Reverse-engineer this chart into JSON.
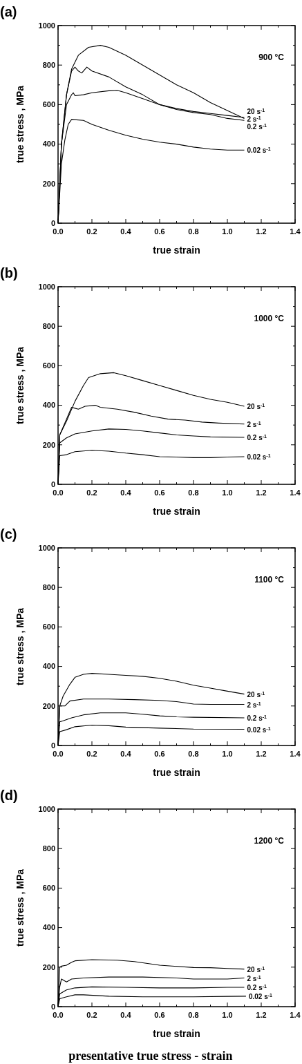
{
  "chart_data": [
    {
      "type": "line",
      "title": "(a)",
      "xlabel": "true strain",
      "ylabel": "true stress , MPa",
      "annotations": [
        "900 °C"
      ],
      "xlim": [
        0,
        1.4
      ],
      "ylim": [
        0,
        1000
      ],
      "xticks": [
        {
          "value": 0,
          "label": "0.0"
        },
        {
          "value": 0.1,
          "label": null
        },
        0.2,
        {
          "value": 0.3,
          "label": null
        },
        0.4,
        {
          "value": 0.5,
          "label": null
        },
        0.6,
        {
          "value": 0.7,
          "label": null
        },
        0.8,
        {
          "value": 0.9,
          "label": null
        },
        {
          "value": 1,
          "label": "1.0"
        },
        {
          "value": 1.1,
          "label": null
        },
        1.2,
        {
          "value": 1.3,
          "label": null
        },
        1.4
      ],
      "yticks": [
        0,
        {
          "value": 100,
          "label": null
        },
        200,
        {
          "value": 300,
          "label": null
        },
        400,
        {
          "value": 500,
          "label": null
        },
        600,
        {
          "value": 700,
          "label": null
        },
        800,
        {
          "value": 900,
          "label": null
        },
        1000
      ],
      "marker": "none",
      "line_style": "solid",
      "series": [
        {
          "name": "20 s$^{-1}$",
          "color": "#000000",
          "x": [
            0,
            0.02,
            0.05,
            0.08,
            0.12,
            0.18,
            0.25,
            0.3,
            0.4,
            0.5,
            0.6,
            0.7,
            0.8,
            0.9,
            1.0,
            1.1
          ],
          "values": [
            0,
            400,
            650,
            780,
            850,
            890,
            900,
            890,
            850,
            800,
            750,
            700,
            660,
            610,
            570,
            530
          ]
        },
        {
          "name": "2 s$^{-1}$",
          "color": "#000000",
          "x": [
            0,
            0.02,
            0.05,
            0.08,
            0.1,
            0.12,
            0.14,
            0.17,
            0.2,
            0.3,
            0.4,
            0.5,
            0.6,
            0.7,
            0.8,
            0.9,
            1.0,
            1.1
          ],
          "values": [
            0,
            400,
            650,
            770,
            790,
            770,
            760,
            790,
            770,
            740,
            690,
            650,
            600,
            580,
            565,
            555,
            545,
            535
          ]
        },
        {
          "name": "0.2 s$^{-1}$",
          "color": "#000000",
          "x": [
            0,
            0.02,
            0.05,
            0.08,
            0.09,
            0.1,
            0.15,
            0.2,
            0.3,
            0.35,
            0.4,
            0.5,
            0.6,
            0.7,
            0.8,
            0.9,
            1.0,
            1.1
          ],
          "values": [
            0,
            400,
            600,
            650,
            660,
            645,
            650,
            660,
            670,
            672,
            660,
            630,
            600,
            575,
            560,
            550,
            530,
            520
          ]
        },
        {
          "name": "0.02 s$^{-1}$",
          "color": "#000000",
          "x": [
            0,
            0.02,
            0.04,
            0.06,
            0.08,
            0.15,
            0.2,
            0.3,
            0.4,
            0.5,
            0.6,
            0.7,
            0.8,
            0.9,
            1.0,
            1.1
          ],
          "values": [
            0,
            300,
            420,
            500,
            525,
            520,
            500,
            470,
            445,
            425,
            410,
            400,
            385,
            375,
            370,
            370
          ]
        }
      ]
    },
    {
      "type": "line",
      "title": "(b)",
      "xlabel": "true strain",
      "ylabel": "true stress , MPa",
      "annotations": [
        "1000 °C"
      ],
      "xlim": [
        0,
        1.4
      ],
      "ylim": [
        0,
        1000
      ],
      "xticks": [
        {
          "value": 0,
          "label": "0.0"
        },
        {
          "value": 0.1,
          "label": null
        },
        0.2,
        {
          "value": 0.3,
          "label": null
        },
        0.4,
        {
          "value": 0.5,
          "label": null
        },
        0.6,
        {
          "value": 0.7,
          "label": null
        },
        0.8,
        {
          "value": 0.9,
          "label": null
        },
        {
          "value": 1,
          "label": "1.0"
        },
        {
          "value": 1.1,
          "label": null
        },
        1.2,
        {
          "value": 1.3,
          "label": null
        },
        1.4
      ],
      "yticks": [
        0,
        {
          "value": 100,
          "label": null
        },
        200,
        {
          "value": 300,
          "label": null
        },
        400,
        {
          "value": 500,
          "label": null
        },
        600,
        {
          "value": 700,
          "label": null
        },
        800,
        {
          "value": 900,
          "label": null
        },
        1000
      ],
      "marker": "none",
      "line_style": "solid",
      "series": [
        {
          "name": "20 s$^{-1}$",
          "color": "#000000",
          "x": [
            0,
            0.01,
            0.05,
            0.1,
            0.15,
            0.18,
            0.25,
            0.33,
            0.4,
            0.5,
            0.6,
            0.7,
            0.8,
            0.9,
            1.0,
            1.1
          ],
          "values": [
            0,
            250,
            320,
            420,
            500,
            540,
            560,
            565,
            550,
            525,
            500,
            475,
            450,
            430,
            415,
            395
          ]
        },
        {
          "name": "2 s$^{-1}$",
          "color": "#000000",
          "x": [
            0,
            0.01,
            0.05,
            0.08,
            0.1,
            0.12,
            0.16,
            0.22,
            0.25,
            0.35,
            0.45,
            0.55,
            0.65,
            0.75,
            0.85,
            0.95,
            1.1
          ],
          "values": [
            0,
            250,
            330,
            390,
            385,
            380,
            395,
            400,
            390,
            380,
            365,
            345,
            330,
            325,
            315,
            310,
            305
          ]
        },
        {
          "name": "0.2 s$^{-1}$",
          "color": "#000000",
          "x": [
            0,
            0.01,
            0.05,
            0.1,
            0.2,
            0.3,
            0.4,
            0.5,
            0.6,
            0.7,
            0.8,
            0.9,
            1.1
          ],
          "values": [
            0,
            210,
            235,
            255,
            270,
            280,
            278,
            270,
            260,
            250,
            245,
            240,
            238
          ]
        },
        {
          "name": "0.02 s$^{-1}$",
          "color": "#000000",
          "x": [
            0,
            0.01,
            0.05,
            0.1,
            0.2,
            0.3,
            0.4,
            0.5,
            0.6,
            0.7,
            0.8,
            0.9,
            1.0,
            1.1
          ],
          "values": [
            0,
            145,
            150,
            165,
            172,
            168,
            158,
            150,
            140,
            138,
            135,
            135,
            138,
            140
          ]
        }
      ]
    },
    {
      "type": "line",
      "title": "(c)",
      "xlabel": "true strain",
      "ylabel": "true stress , MPa",
      "annotations": [
        "1100 °C"
      ],
      "xlim": [
        0,
        1.4
      ],
      "ylim": [
        0,
        1000
      ],
      "xticks": [
        {
          "value": 0,
          "label": "0.0"
        },
        {
          "value": 0.1,
          "label": null
        },
        0.2,
        {
          "value": 0.3,
          "label": null
        },
        0.4,
        {
          "value": 0.5,
          "label": null
        },
        0.6,
        {
          "value": 0.7,
          "label": null
        },
        0.8,
        {
          "value": 0.9,
          "label": null
        },
        {
          "value": 1,
          "label": "1.0"
        },
        {
          "value": 1.1,
          "label": null
        },
        1.2,
        {
          "value": 1.3,
          "label": null
        },
        1.4
      ],
      "yticks": [
        0,
        {
          "value": 100,
          "label": null
        },
        200,
        {
          "value": 300,
          "label": null
        },
        400,
        {
          "value": 500,
          "label": null
        },
        600,
        {
          "value": 700,
          "label": null
        },
        800,
        {
          "value": 900,
          "label": null
        },
        1000
      ],
      "marker": "none",
      "line_style": "solid",
      "series": [
        {
          "name": "20 s$^{-1}$",
          "color": "#000000",
          "x": [
            0,
            0.01,
            0.03,
            0.07,
            0.1,
            0.15,
            0.2,
            0.3,
            0.4,
            0.5,
            0.6,
            0.7,
            0.8,
            0.9,
            1.0,
            1.1
          ],
          "values": [
            0,
            200,
            250,
            310,
            345,
            360,
            365,
            360,
            355,
            350,
            340,
            325,
            305,
            290,
            275,
            260
          ]
        },
        {
          "name": "2 s$^{-1}$",
          "color": "#000000",
          "x": [
            0,
            0.01,
            0.04,
            0.07,
            0.15,
            0.3,
            0.45,
            0.6,
            0.7,
            0.8,
            0.9,
            1.1
          ],
          "values": [
            0,
            200,
            200,
            225,
            235,
            235,
            232,
            228,
            222,
            210,
            208,
            208
          ]
        },
        {
          "name": "0.2 s$^{-1}$",
          "color": "#000000",
          "x": [
            0,
            0.01,
            0.03,
            0.08,
            0.15,
            0.25,
            0.4,
            0.5,
            0.6,
            0.7,
            0.8,
            1.1
          ],
          "values": [
            0,
            120,
            125,
            140,
            155,
            165,
            165,
            158,
            150,
            145,
            143,
            140
          ]
        },
        {
          "name": "0.02 s$^{-1}$",
          "color": "#000000",
          "x": [
            0,
            0.01,
            0.05,
            0.1,
            0.2,
            0.3,
            0.4,
            0.6,
            0.8,
            1.1
          ],
          "values": [
            0,
            70,
            80,
            95,
            103,
            100,
            93,
            88,
            83,
            82
          ]
        }
      ]
    },
    {
      "type": "line",
      "title": "(d)",
      "xlabel": "true strain",
      "ylabel": "true stress , MPa",
      "annotations": [
        "1200 °C",
        "presentative true stress - strain"
      ],
      "xlim": [
        0,
        1.4
      ],
      "ylim": [
        0,
        1000
      ],
      "xticks": [
        {
          "value": 0,
          "label": "0.0"
        },
        {
          "value": 0.1,
          "label": null
        },
        0.2,
        {
          "value": 0.3,
          "label": null
        },
        0.4,
        {
          "value": 0.5,
          "label": null
        },
        0.6,
        {
          "value": 0.7,
          "label": null
        },
        0.8,
        {
          "value": 0.9,
          "label": null
        },
        {
          "value": 1,
          "label": "1.0"
        },
        {
          "value": 1.1,
          "label": null
        },
        1.2,
        {
          "value": 1.3,
          "label": null
        },
        1.4
      ],
      "yticks": [
        0,
        {
          "value": 100,
          "label": null
        },
        200,
        {
          "value": 300,
          "label": null
        },
        400,
        {
          "value": 500,
          "label": null
        },
        600,
        {
          "value": 700,
          "label": null
        },
        800,
        {
          "value": 900,
          "label": null
        },
        1000
      ],
      "marker": "none",
      "line_style": "solid",
      "series": [
        {
          "name": "20 s$^{-1}$",
          "color": "#000000",
          "x": [
            0,
            0.01,
            0.02,
            0.05,
            0.08,
            0.1,
            0.2,
            0.35,
            0.45,
            0.6,
            0.8,
            0.9,
            1.0,
            1.1
          ],
          "values": [
            0,
            200,
            205,
            210,
            225,
            232,
            238,
            235,
            228,
            210,
            198,
            197,
            193,
            190
          ]
        },
        {
          "name": "2 s$^{-1}$",
          "color": "#000000",
          "x": [
            0,
            0.01,
            0.02,
            0.05,
            0.08,
            0.15,
            0.3,
            0.5,
            0.7,
            0.8,
            1.0,
            1.1
          ],
          "values": [
            0,
            100,
            140,
            125,
            140,
            145,
            150,
            150,
            145,
            140,
            140,
            145
          ]
        },
        {
          "name": "0.2 s$^{-1}$",
          "color": "#000000",
          "x": [
            0,
            0.01,
            0.05,
            0.1,
            0.2,
            0.4,
            0.6,
            0.8,
            1.0,
            1.1
          ],
          "values": [
            0,
            65,
            85,
            95,
            100,
            98,
            95,
            95,
            98,
            98
          ]
        },
        {
          "name": "0.02 s$^{-1}$",
          "color": "#000000",
          "x": [
            0,
            0.01,
            0.05,
            0.1,
            0.15,
            0.3,
            0.5,
            0.8,
            1.0,
            1.11
          ],
          "values": [
            0,
            40,
            50,
            60,
            60,
            53,
            50,
            50,
            52,
            53
          ]
        }
      ]
    }
  ]
}
